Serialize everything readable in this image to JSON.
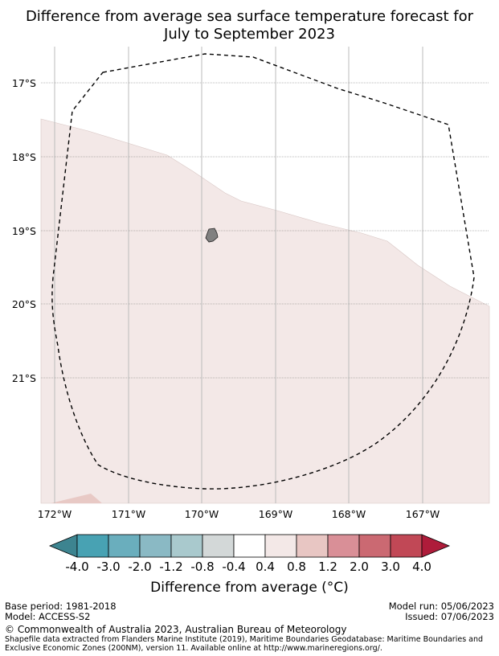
{
  "title": {
    "line1": "Difference from average sea surface temperature forecast for",
    "line2": "July to September 2023"
  },
  "map": {
    "lat_labels": [
      "17°S",
      "18°S",
      "19°S",
      "20°S",
      "21°S"
    ],
    "lat_values": [
      -17,
      -18,
      -19,
      -20,
      -21
    ],
    "lon_labels": [
      "172°W",
      "171°W",
      "170°W",
      "169°W",
      "168°W",
      "167°W"
    ],
    "lon_values": [
      -172,
      -171,
      -170,
      -169,
      -168,
      -167
    ],
    "extent": {
      "lon_min": -172.2,
      "lon_max": -166.1,
      "lat_min": -22.7,
      "lat_max": -16.5
    },
    "region_anomaly_class": "0.4 to 0.8",
    "region_color": "#f3e8e7",
    "corner_color": "#e8c9c5",
    "land_color": "#808080",
    "eez_line": "dashed",
    "eez_line_color": "#000000"
  },
  "colorbar": {
    "tick_labels": [
      "-4.0",
      "-3.0",
      "-2.0",
      "-1.2",
      "-0.8",
      "-0.4",
      "0.4",
      "0.8",
      "1.2",
      "2.0",
      "3.0",
      "4.0"
    ],
    "colors": [
      "#3d8490",
      "#48a2b3",
      "#6aaebd",
      "#8ab9c4",
      "#a9c9cd",
      "#d3d8d8",
      "#ffffff",
      "#f3e8e7",
      "#e8c6c3",
      "#d98f97",
      "#cb6972",
      "#c14856",
      "#ae1c3a"
    ],
    "label": "Difference from average (°C)"
  },
  "footer": {
    "base_period": "Base period: 1981-2018",
    "model": "Model: ACCESS-S2",
    "model_run": "Model run: 05/06/2023",
    "issued": "Issued: 07/06/2023",
    "copyright": "© Commonwealth of Australia 2023, Australian Bureau of Meteorology",
    "shapefile": "Shapefile data extracted from Flanders Marine Institute (2019), Maritime Boundaries Geodatabase: Maritime Boundaries and Exclusive Economic Zones (200NM), version 11. Available online at http://www.marineregions.org/."
  }
}
